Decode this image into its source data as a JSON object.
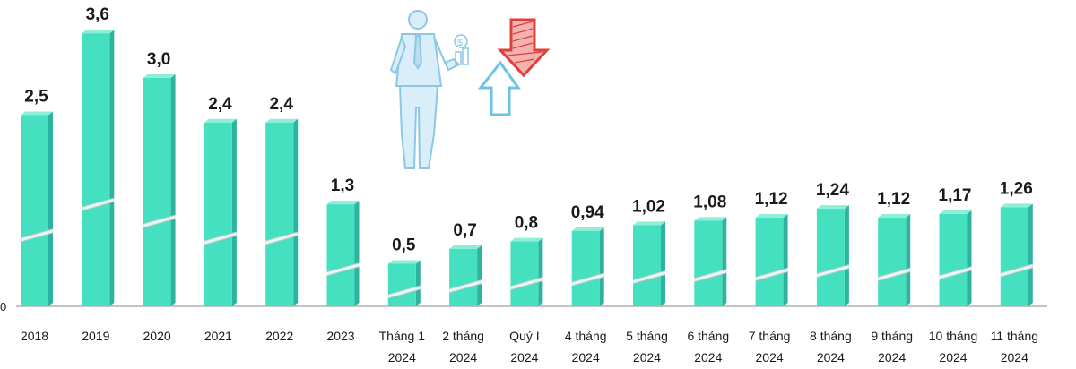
{
  "chart_data": {
    "type": "bar",
    "categories": [
      [
        "2018"
      ],
      [
        "2019"
      ],
      [
        "2020"
      ],
      [
        "2021"
      ],
      [
        "2022"
      ],
      [
        "2023"
      ],
      [
        "Tháng 1",
        "2024"
      ],
      [
        "2 tháng",
        "2024"
      ],
      [
        "Quý I",
        "2024"
      ],
      [
        "4 tháng",
        "2024"
      ],
      [
        "5 tháng",
        "2024"
      ],
      [
        "6 tháng",
        "2024"
      ],
      [
        "7 tháng",
        "2024"
      ],
      [
        "8 tháng",
        "2024"
      ],
      [
        "9 tháng",
        "2024"
      ],
      [
        "10 tháng",
        "2024"
      ],
      [
        "11 tháng",
        "2024"
      ]
    ],
    "values": [
      2.5,
      3.6,
      3.0,
      2.4,
      2.4,
      1.3,
      0.5,
      0.7,
      0.8,
      0.94,
      1.02,
      1.08,
      1.12,
      1.24,
      1.12,
      1.17,
      1.26
    ],
    "value_labels": [
      "2,5",
      "3,6",
      "3,0",
      "2,4",
      "2,4",
      "1,3",
      "0,5",
      "0,7",
      "0,8",
      "0,94",
      "1,02",
      "1,08",
      "1,12",
      "1,24",
      "1,12",
      "1,17",
      "1,26"
    ],
    "axis_zero_label": "0",
    "ylim": [
      0,
      3.6
    ],
    "axis_break": "diagonal stripe across each bar",
    "grid": false,
    "legend": "none",
    "colors": {
      "bar_front": "#45e0bf",
      "bar_side": "#2fb3a1",
      "bar_top": "#8bf0d6",
      "baseline": "#8a8a8a",
      "break_stripe": "#c9c9c9"
    }
  },
  "illustration": {
    "name": "businessman-with-arrows",
    "colors": {
      "person": "#8cc7e6",
      "arrow_up": "#6cc3e5",
      "arrow_down": "#e0403b"
    }
  }
}
